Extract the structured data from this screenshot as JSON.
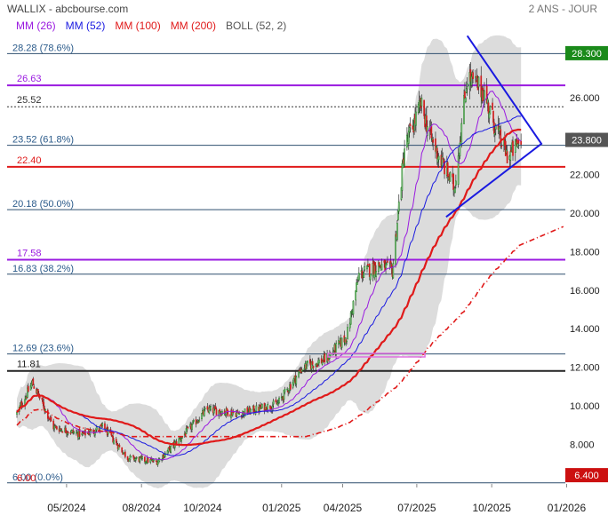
{
  "header": {
    "title": "WALLIX - abcbourse.com",
    "period": "2 ANS - JOUR"
  },
  "legend": [
    {
      "label": "MM (26)",
      "color": "#9a1ae0"
    },
    {
      "label": "MM (52)",
      "color": "#1a1ae0"
    },
    {
      "label": "MM (100)",
      "color": "#e01a1a"
    },
    {
      "label": "MM (200)",
      "color": "#e01a1a"
    },
    {
      "label": "BOLL (52, 2)",
      "color": "#555555"
    }
  ],
  "chart_data": {
    "type": "candlestick",
    "y_axis": {
      "min": 6.0,
      "max": 29.3,
      "ticks": [
        "8.000",
        "10.000",
        "12.000",
        "14.000",
        "16.000",
        "18.000",
        "20.000",
        "22.000",
        "24.000",
        "26.000"
      ]
    },
    "x_axis": {
      "labels": [
        "05/2024",
        "08/2024",
        "10/2024",
        "01/2025",
        "04/2025",
        "07/2025",
        "10/2025",
        "01/2026"
      ]
    },
    "last_price": {
      "value": 23.8,
      "label": "23.800"
    },
    "high_marker": {
      "value": 28.3,
      "label": "28.300"
    },
    "low_marker": {
      "value": 6.4,
      "label": "6.400"
    },
    "fibonacci_levels": [
      {
        "value": 28.28,
        "label": "28.28  (78.6%)"
      },
      {
        "value": 23.52,
        "label": "23.52  (61.8%)"
      },
      {
        "value": 20.18,
        "label": "20.18  (50.0%)"
      },
      {
        "value": 16.83,
        "label": "16.83  (38.2%)"
      },
      {
        "value": 12.69,
        "label": "12.69  (23.6%)"
      },
      {
        "value": 6.0,
        "label": "6.00  (0.0%)"
      }
    ],
    "horizontal_levels": [
      {
        "value": 26.63,
        "label": "26.63",
        "color": "#9a1ae0"
      },
      {
        "value": 25.52,
        "label": "25.52",
        "color": "#333333",
        "dashed": true
      },
      {
        "value": 22.4,
        "label": "22.40",
        "color": "#e01a1a"
      },
      {
        "value": 17.58,
        "label": "17.58",
        "color": "#9a1ae0"
      },
      {
        "value": 11.81,
        "label": "11.81",
        "color": "#222222"
      }
    ],
    "low_annotation": {
      "value": 6.0,
      "label": "6.00"
    },
    "ohlc_keypoints": [
      {
        "date": "2024-03-01",
        "close": 9.6
      },
      {
        "date": "2024-03-20",
        "close": 11.2
      },
      {
        "date": "2024-04-15",
        "close": 8.9
      },
      {
        "date": "2024-05-20",
        "close": 8.5
      },
      {
        "date": "2024-06-15",
        "close": 8.9
      },
      {
        "date": "2024-07-15",
        "close": 7.3
      },
      {
        "date": "2024-08-20",
        "close": 7.1
      },
      {
        "date": "2024-09-20",
        "close": 8.4
      },
      {
        "date": "2024-10-20",
        "close": 9.8
      },
      {
        "date": "2024-12-01",
        "close": 9.6
      },
      {
        "date": "2025-01-15",
        "close": 10.1
      },
      {
        "date": "2025-02-15",
        "close": 12.0
      },
      {
        "date": "2025-03-15",
        "close": 12.4
      },
      {
        "date": "2025-04-10",
        "close": 13.6
      },
      {
        "date": "2025-04-25",
        "close": 16.8
      },
      {
        "date": "2025-05-20",
        "close": 17.3
      },
      {
        "date": "2025-06-05",
        "close": 17.0
      },
      {
        "date": "2025-06-20",
        "close": 23.4
      },
      {
        "date": "2025-07-10",
        "close": 25.6
      },
      {
        "date": "2025-07-25",
        "close": 23.6
      },
      {
        "date": "2025-08-20",
        "close": 21.3
      },
      {
        "date": "2025-09-05",
        "close": 27.1
      },
      {
        "date": "2025-09-25",
        "close": 26.3
      },
      {
        "date": "2025-10-10",
        "close": 24.4
      },
      {
        "date": "2025-10-25",
        "close": 22.9
      },
      {
        "date": "2025-11-10",
        "close": 23.8
      }
    ]
  }
}
